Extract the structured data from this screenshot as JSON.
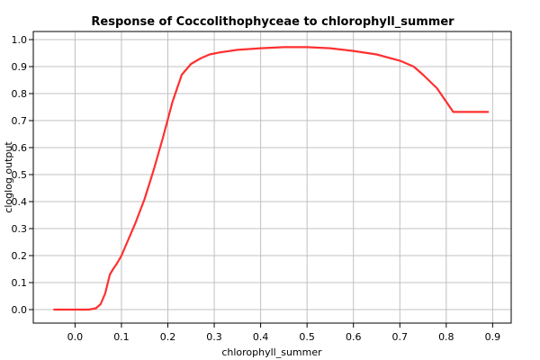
{
  "chart_data": {
    "type": "line",
    "title": "Response of Coccolithophyceae to chlorophyll_summer",
    "xlabel": "chlorophyll_summer",
    "ylabel": "cloglog output",
    "xlim": [
      -0.09,
      0.94
    ],
    "ylim": [
      -0.05,
      1.03
    ],
    "xticks": [
      0.0,
      0.1,
      0.2,
      0.3,
      0.4,
      0.5,
      0.6,
      0.7,
      0.8,
      0.9
    ],
    "xtick_labels": [
      "0.0",
      "0.1",
      "0.2",
      "0.3",
      "0.4",
      "0.5",
      "0.6",
      "0.7",
      "0.8",
      "0.9"
    ],
    "yticks": [
      0.0,
      0.1,
      0.2,
      0.3,
      0.4,
      0.5,
      0.6,
      0.7,
      0.8,
      0.9,
      1.0
    ],
    "ytick_labels": [
      "0.0",
      "0.1",
      "0.2",
      "0.3",
      "0.4",
      "0.5",
      "0.6",
      "0.7",
      "0.8",
      "0.9",
      "1.0"
    ],
    "grid": true,
    "series": [
      {
        "color": "#ff3030",
        "x": [
          -0.045,
          0.0,
          0.03,
          0.045,
          0.055,
          0.065,
          0.075,
          0.082,
          0.09,
          0.1,
          0.11,
          0.13,
          0.15,
          0.17,
          0.19,
          0.21,
          0.23,
          0.25,
          0.27,
          0.29,
          0.31,
          0.35,
          0.4,
          0.45,
          0.5,
          0.55,
          0.6,
          0.65,
          0.7,
          0.73,
          0.75,
          0.78,
          0.8,
          0.815,
          0.83,
          0.85,
          0.89
        ],
        "y": [
          0.0,
          0.0,
          0.0,
          0.005,
          0.02,
          0.06,
          0.13,
          0.15,
          0.17,
          0.2,
          0.24,
          0.32,
          0.41,
          0.52,
          0.64,
          0.77,
          0.87,
          0.91,
          0.93,
          0.945,
          0.952,
          0.962,
          0.968,
          0.972,
          0.972,
          0.968,
          0.958,
          0.945,
          0.922,
          0.9,
          0.87,
          0.82,
          0.77,
          0.732,
          0.732,
          0.732,
          0.732
        ]
      }
    ]
  }
}
